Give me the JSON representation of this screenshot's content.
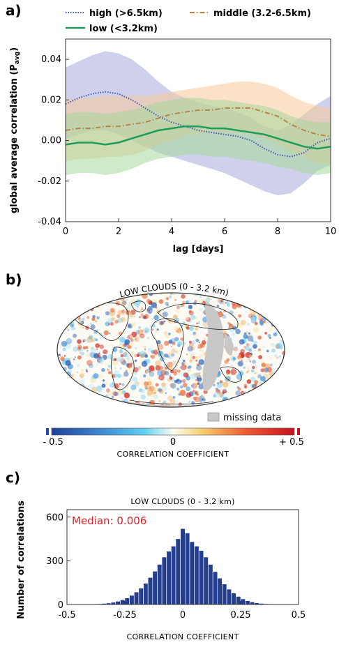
{
  "panels": {
    "a": "a)",
    "b": "b)",
    "c": "c)"
  },
  "colors": {
    "high": "#4456b8",
    "middle": "#b8834a",
    "low": "#1e9a5a",
    "high_band": "#a8acdc",
    "middle_band": "#f6c89a",
    "low_band": "#a6d89a",
    "bar": "#253f8e",
    "median": "#e0202a",
    "missing": "#c8c8c8"
  },
  "map": {
    "title": "LOW CLOUDS (0 - 3.2 km)",
    "missing_label": "missing data",
    "colorbar_ticks": [
      "- 0.5",
      "0",
      "+ 0.5"
    ],
    "colorbar_title": "CORRELATION COEFFICIENT"
  },
  "chart_data": [
    {
      "type": "line",
      "panel": "a",
      "xlabel": "lag [days]",
      "ylabel": "global average correlation (P",
      "ylabel_sub": "avg",
      "ylabel_end": ")",
      "xlim": [
        0,
        10
      ],
      "ylim": [
        -0.04,
        0.05
      ],
      "x_ticks": [
        "0",
        "2",
        "4",
        "6",
        "8",
        "10"
      ],
      "y_ticks": [
        "0.04",
        "0.02",
        "0.00",
        "-0.02",
        "-0.04"
      ],
      "legend_placement": "top",
      "x": [
        0,
        0.5,
        1,
        1.5,
        2,
        2.5,
        3,
        3.5,
        4,
        4.5,
        5,
        5.5,
        6,
        6.5,
        7,
        7.5,
        8,
        8.5,
        9,
        9.5,
        10
      ],
      "series": [
        {
          "name": "high (>6.5km)",
          "style": "dotted",
          "values": [
            0.018,
            0.021,
            0.023,
            0.024,
            0.023,
            0.02,
            0.016,
            0.012,
            0.009,
            0.007,
            0.005,
            0.004,
            0.003,
            0.002,
            0.0,
            -0.004,
            -0.007,
            -0.008,
            -0.006,
            -0.001,
            0.001
          ],
          "band_upper": [
            0.036,
            0.039,
            0.042,
            0.044,
            0.043,
            0.04,
            0.035,
            0.029,
            0.024,
            0.021,
            0.019,
            0.017,
            0.016,
            0.014,
            0.011,
            0.007,
            0.005,
            0.008,
            0.013,
            0.018,
            0.022
          ],
          "band_lower": [
            0.001,
            0.003,
            0.005,
            0.005,
            0.003,
            0.0,
            -0.003,
            -0.006,
            -0.008,
            -0.01,
            -0.012,
            -0.014,
            -0.016,
            -0.019,
            -0.022,
            -0.025,
            -0.027,
            -0.026,
            -0.021,
            -0.015,
            -0.012
          ]
        },
        {
          "name": "middle (3.2-6.5km)",
          "style": "dashdot",
          "values": [
            0.005,
            0.006,
            0.006,
            0.007,
            0.007,
            0.008,
            0.009,
            0.011,
            0.013,
            0.014,
            0.015,
            0.015,
            0.016,
            0.016,
            0.016,
            0.014,
            0.012,
            0.008,
            0.005,
            0.003,
            0.002
          ],
          "band_upper": [
            0.02,
            0.021,
            0.021,
            0.022,
            0.022,
            0.022,
            0.022,
            0.023,
            0.024,
            0.025,
            0.026,
            0.027,
            0.028,
            0.029,
            0.029,
            0.028,
            0.026,
            0.022,
            0.019,
            0.017,
            0.016
          ],
          "band_lower": [
            -0.01,
            -0.009,
            -0.009,
            -0.008,
            -0.008,
            -0.007,
            -0.005,
            -0.002,
            0.0,
            0.002,
            0.003,
            0.004,
            0.004,
            0.004,
            0.003,
            0.001,
            -0.002,
            -0.006,
            -0.009,
            -0.011,
            -0.012
          ]
        },
        {
          "name": "low (<3.2km)",
          "style": "solid",
          "values": [
            -0.002,
            -0.001,
            -0.001,
            -0.002,
            -0.001,
            0.001,
            0.003,
            0.005,
            0.006,
            0.007,
            0.007,
            0.006,
            0.006,
            0.005,
            0.004,
            0.003,
            0.001,
            -0.001,
            -0.003,
            -0.004,
            -0.003
          ],
          "band_upper": [
            0.013,
            0.014,
            0.014,
            0.013,
            0.014,
            0.015,
            0.017,
            0.019,
            0.02,
            0.021,
            0.021,
            0.02,
            0.02,
            0.019,
            0.018,
            0.017,
            0.015,
            0.012,
            0.01,
            0.009,
            0.009
          ],
          "band_lower": [
            -0.017,
            -0.016,
            -0.016,
            -0.017,
            -0.016,
            -0.014,
            -0.011,
            -0.009,
            -0.008,
            -0.007,
            -0.007,
            -0.008,
            -0.008,
            -0.009,
            -0.01,
            -0.011,
            -0.013,
            -0.014,
            -0.016,
            -0.017,
            -0.016
          ]
        }
      ]
    },
    {
      "type": "bar",
      "panel": "c",
      "title": "LOW CLOUDS (0 - 3.2 km)",
      "xlabel": "CORRELATION COEFFICIENT",
      "ylabel": "Number of correlations",
      "annotation": "Median: 0.006",
      "xlim": [
        -0.5,
        0.5
      ],
      "ylim": [
        0,
        650
      ],
      "x_ticks": [
        "-0.5",
        "-0.25",
        "0",
        "0.25",
        "0.5"
      ],
      "y_ticks": [
        "600",
        "300",
        "0"
      ],
      "bin_width": 0.02,
      "x": [
        -0.42,
        -0.4,
        -0.38,
        -0.36,
        -0.34,
        -0.32,
        -0.3,
        -0.28,
        -0.26,
        -0.24,
        -0.22,
        -0.2,
        -0.18,
        -0.16,
        -0.14,
        -0.12,
        -0.1,
        -0.08,
        -0.06,
        -0.04,
        -0.02,
        0.0,
        0.02,
        0.04,
        0.06,
        0.08,
        0.1,
        0.12,
        0.14,
        0.16,
        0.18,
        0.2,
        0.22,
        0.24,
        0.26,
        0.28,
        0.3,
        0.32,
        0.34,
        0.36,
        0.38,
        0.4,
        0.42
      ],
      "values": [
        2,
        3,
        4,
        5,
        7,
        10,
        15,
        22,
        32,
        45,
        62,
        85,
        112,
        145,
        185,
        228,
        275,
        325,
        365,
        400,
        450,
        520,
        490,
        430,
        400,
        370,
        325,
        275,
        225,
        180,
        140,
        105,
        78,
        55,
        38,
        26,
        17,
        11,
        7,
        5,
        3,
        2,
        1
      ]
    }
  ]
}
